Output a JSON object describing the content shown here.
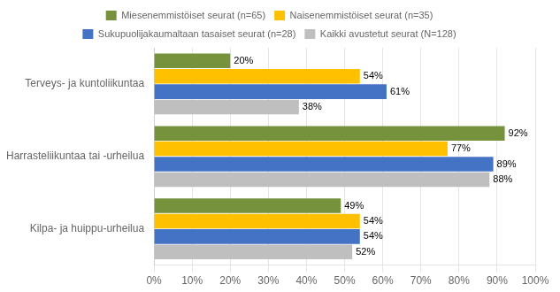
{
  "chart_data": {
    "type": "bar",
    "orientation": "horizontal",
    "categories": [
      "Terveys- ja kuntoliikuntaa",
      "Harrasteliikuntaa tai -urheilua",
      "Kilpa- ja huippu-urheilua"
    ],
    "series": [
      {
        "name": "Miesenemmistöiset seurat (n=65)",
        "color": "#76923C",
        "values": [
          20,
          92,
          49
        ],
        "value_labels": [
          "20%",
          "92%",
          "49%"
        ]
      },
      {
        "name": "Naisenemmistöiset seurat (n=35)",
        "color": "#FFC000",
        "values": [
          54,
          77,
          54
        ],
        "value_labels": [
          "54%",
          "77%",
          "54%"
        ]
      },
      {
        "name": "Sukupuolijakaumaltaan tasaiset seurat (n=28)",
        "color": "#4472C4",
        "values": [
          61,
          89,
          54
        ],
        "value_labels": [
          "61%",
          "89%",
          "54%"
        ]
      },
      {
        "name": "Kaikki avustetut seurat (N=128)",
        "color": "#BFBFBF",
        "values": [
          38,
          88,
          52
        ],
        "value_labels": [
          "38%",
          "88%",
          "52%"
        ]
      }
    ],
    "xlim": [
      0,
      100
    ],
    "xticks": [
      {
        "value": 0,
        "label": "0%"
      },
      {
        "value": 10,
        "label": "10%"
      },
      {
        "value": 20,
        "label": "20%"
      },
      {
        "value": 30,
        "label": "30%"
      },
      {
        "value": 40,
        "label": "40%"
      },
      {
        "value": 50,
        "label": "50%"
      },
      {
        "value": 60,
        "label": "60%"
      },
      {
        "value": 70,
        "label": "70%"
      },
      {
        "value": 80,
        "label": "80%"
      },
      {
        "value": 90,
        "label": "90%"
      },
      {
        "value": 100,
        "label": "100%"
      }
    ],
    "grid": true,
    "legend": "top",
    "data_labels": true
  }
}
